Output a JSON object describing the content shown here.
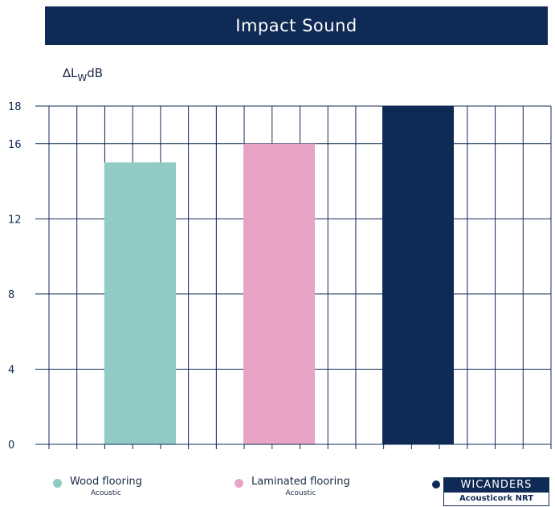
{
  "colors": {
    "navy": "#0f2a55",
    "teal": "#90cbc6",
    "pink": "#e8a4c5"
  },
  "header": {
    "title": "Impact Sound"
  },
  "unit_label": {
    "prefix": "∆L",
    "sub": "W",
    "suffix": "dB"
  },
  "legend": [
    {
      "label": "Wood flooring",
      "sublabel": "Acoustic",
      "color": "#90cbc6"
    },
    {
      "label": "Laminated flooring",
      "sublabel": "Acoustic",
      "color": "#e8a4c5"
    }
  ],
  "brand": {
    "name": "WICANDERS",
    "product": "Acousticork NRT",
    "color": "#0f2a55"
  },
  "chart_data": {
    "type": "bar",
    "title": "Impact Sound",
    "ylabel": "∆Lw dB",
    "categories": [
      "Wood flooring",
      "Laminated flooring",
      "WICANDERS Acousticork NRT"
    ],
    "values": [
      15,
      16,
      18
    ],
    "colors": [
      "#90cbc6",
      "#e8a4c5",
      "#0f2a55"
    ],
    "ylim": [
      0,
      18
    ],
    "yticks": [
      0,
      4,
      8,
      12,
      16,
      18
    ],
    "grid": true,
    "legend_position": "bottom"
  }
}
